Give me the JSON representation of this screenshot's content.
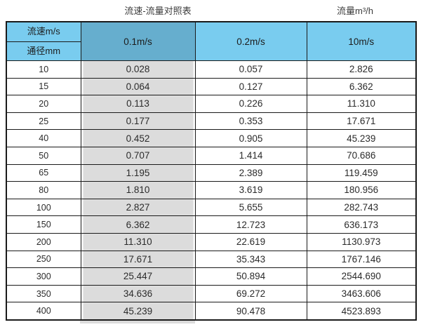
{
  "titles": {
    "main": "流速-流量对照表",
    "unit": "流量m³/h"
  },
  "table": {
    "corner": {
      "top": "流速m/s",
      "bottom": "通径mm"
    },
    "velocity_columns": [
      "0.1m/s",
      "0.2m/s",
      "10m/s"
    ],
    "rows": [
      [
        "10",
        "0.028",
        "0.057",
        "2.826"
      ],
      [
        "15",
        "0.064",
        "0.127",
        "6.362"
      ],
      [
        "20",
        "0.113",
        "0.226",
        "11.310"
      ],
      [
        "25",
        "0.177",
        "0.353",
        "17.671"
      ],
      [
        "40",
        "0.452",
        "0.905",
        "45.239"
      ],
      [
        "50",
        "0.707",
        "1.414",
        "70.686"
      ],
      [
        "65",
        "1.195",
        "2.389",
        "119.459"
      ],
      [
        "80",
        "1.810",
        "3.619",
        "180.956"
      ],
      [
        "100",
        "2.827",
        "5.655",
        "282.743"
      ],
      [
        "150",
        "6.362",
        "12.723",
        "636.173"
      ],
      [
        "200",
        "11.310",
        "22.619",
        "1130.973"
      ],
      [
        "250",
        "17.671",
        "35.343",
        "1767.146"
      ],
      [
        "300",
        "25.447",
        "50.894",
        "2544.690"
      ],
      [
        "350",
        "34.636",
        "69.272",
        "3463.606"
      ],
      [
        "400",
        "45.239",
        "90.478",
        "4523.893"
      ]
    ]
  },
  "colors": {
    "header_blue": "#79ccef",
    "highlight_blue": "#66aece",
    "highlight_gray": "#dcdcdc",
    "border": "#1a1a1a"
  },
  "chart_data": {
    "type": "table",
    "title": "流速-流量对照表",
    "unit_label": "流量m³/h",
    "row_axis_label": "通径mm",
    "column_axis_label": "流速m/s",
    "categories": [
      10,
      15,
      20,
      25,
      40,
      50,
      65,
      80,
      100,
      150,
      200,
      250,
      300,
      350,
      400
    ],
    "series": [
      {
        "name": "0.1m/s",
        "values": [
          0.028,
          0.064,
          0.113,
          0.177,
          0.452,
          0.707,
          1.195,
          1.81,
          2.827,
          6.362,
          11.31,
          17.671,
          25.447,
          34.636,
          45.239
        ]
      },
      {
        "name": "0.2m/s",
        "values": [
          0.057,
          0.127,
          0.226,
          0.353,
          0.905,
          1.414,
          2.389,
          3.619,
          5.655,
          12.723,
          22.619,
          35.343,
          50.894,
          69.272,
          90.478
        ]
      },
      {
        "name": "10m/s",
        "values": [
          2.826,
          6.362,
          11.31,
          17.671,
          45.239,
          70.686,
          119.459,
          180.956,
          282.743,
          636.173,
          1130.973,
          1767.146,
          2544.69,
          3463.606,
          4523.893
        ]
      }
    ]
  }
}
